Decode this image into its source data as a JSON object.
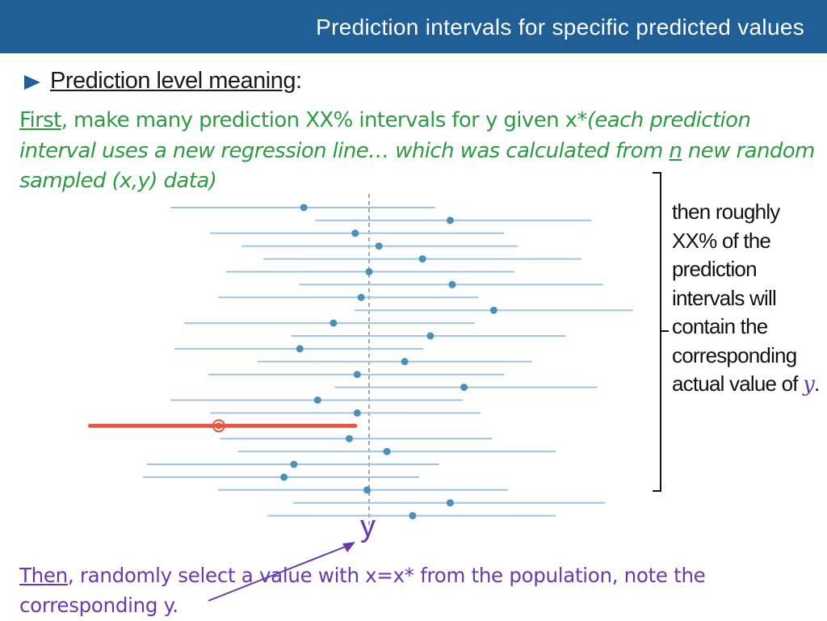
{
  "header": {
    "title": "Prediction intervals for specific predicted values",
    "background": "#1f5f95"
  },
  "bullet": {
    "icon": "triangle-bullet-icon",
    "heading": "Prediction level meaning",
    "heading_suffix": ":"
  },
  "step1": {
    "first_word": "First",
    "text": ", make many prediction XX% intervals for y given x*",
    "italic_a": "(each prediction interval uses a new regression line… which was calculated from ",
    "n": "n",
    "italic_b": " new random sampled (x,y) data)",
    "color": "#2e9a43"
  },
  "side_note": {
    "text": "then roughly XX% of the prediction intervals will contain the corresponding actual value of ",
    "y": "y",
    "period": "."
  },
  "step2": {
    "first_word": "Then",
    "text": ", randomly select a value with x=x* from the population, note the corresponding y.",
    "color": "#6a3aa6"
  },
  "y_marker": {
    "label": "y"
  },
  "colors": {
    "interval": "#9fc6df",
    "point": "#4a90b8",
    "miss": "#e8553a",
    "reference": "#8a8a8a",
    "annotation": "#6a3aa6"
  },
  "chart_data": {
    "type": "interval",
    "description_free": true,
    "reference_x": 0,
    "intervals": [
      {
        "low": -1.0,
        "high": 0.33,
        "point": -0.33,
        "contains": true
      },
      {
        "low": -0.27,
        "high": 1.12,
        "point": 0.41,
        "contains": true
      },
      {
        "low": -0.8,
        "high": 0.68,
        "point": -0.07,
        "contains": true
      },
      {
        "low": -0.64,
        "high": 0.75,
        "point": 0.05,
        "contains": true
      },
      {
        "low": -0.53,
        "high": 1.07,
        "point": 0.27,
        "contains": true
      },
      {
        "low": -0.72,
        "high": 0.73,
        "point": 0.0,
        "contains": true
      },
      {
        "low": -0.35,
        "high": 1.18,
        "point": 0.42,
        "contains": true
      },
      {
        "low": -0.76,
        "high": 0.55,
        "point": -0.04,
        "contains": true
      },
      {
        "low": -0.07,
        "high": 1.33,
        "point": 0.63,
        "contains": true
      },
      {
        "low": -0.93,
        "high": 0.53,
        "point": -0.18,
        "contains": true
      },
      {
        "low": -0.39,
        "high": 0.99,
        "point": 0.31,
        "contains": true
      },
      {
        "low": -0.98,
        "high": 0.27,
        "point": -0.35,
        "contains": true
      },
      {
        "low": -0.56,
        "high": 0.82,
        "point": 0.18,
        "contains": true
      },
      {
        "low": -0.81,
        "high": 0.68,
        "point": -0.06,
        "contains": true
      },
      {
        "low": -0.17,
        "high": 1.15,
        "point": 0.48,
        "contains": true
      },
      {
        "low": -1.0,
        "high": 0.47,
        "point": -0.26,
        "contains": true
      },
      {
        "low": -0.8,
        "high": 0.56,
        "point": -0.06,
        "contains": true
      },
      {
        "low": -1.41,
        "high": -0.07,
        "point": -0.76,
        "contains": false
      },
      {
        "low": -0.75,
        "high": 0.62,
        "point": -0.1,
        "contains": true
      },
      {
        "low": -0.66,
        "high": 0.94,
        "point": 0.09,
        "contains": true
      },
      {
        "low": -1.12,
        "high": 0.35,
        "point": -0.38,
        "contains": true
      },
      {
        "low": -1.14,
        "high": 0.25,
        "point": -0.43,
        "contains": true
      },
      {
        "low": -0.76,
        "high": 0.7,
        "point": -0.01,
        "contains": true
      },
      {
        "low": -0.38,
        "high": 1.19,
        "point": 0.41,
        "contains": true
      },
      {
        "low": -0.51,
        "high": 0.94,
        "point": 0.22,
        "contains": true
      }
    ]
  }
}
